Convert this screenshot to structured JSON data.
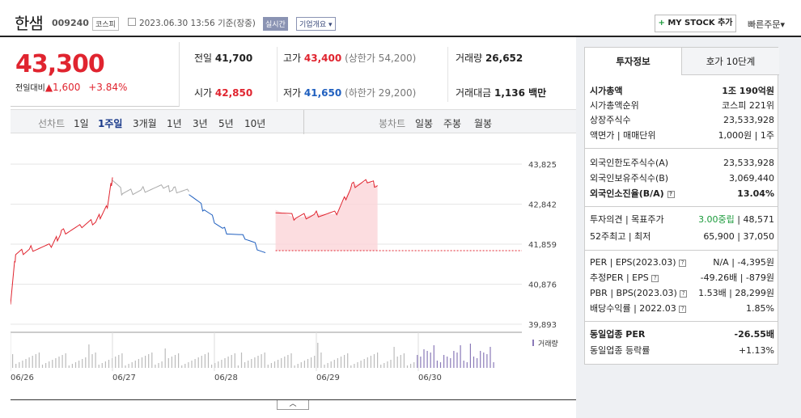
{
  "header": {
    "stock_name": "한샘",
    "stock_code": "009240",
    "market": "코스피",
    "datetime": "2023.06.30 13:56 기준(장중)",
    "realtime_badge": "실시간",
    "company_info": "기업개요",
    "my_stock_button": "MY STOCK 추가",
    "quick_order": "빠른주문"
  },
  "price": {
    "current": "43,300",
    "change_label": "전일대비",
    "change": "1,600",
    "change_pct": "+3.84%"
  },
  "summary": {
    "prev_label": "전일",
    "prev": "41,700",
    "high_label": "고가",
    "high": "43,400",
    "upper_limit": "(상한가 54,200)",
    "volume_label": "거래량",
    "volume": "26,652",
    "open_label": "시가",
    "open": "42,850",
    "low_label": "저가",
    "low": "41,650",
    "lower_limit": "(하한가 29,200)",
    "amount_label": "거래대금",
    "amount": "1,136 백만"
  },
  "controls": {
    "line_label": "선차트",
    "periods": [
      "1일",
      "1주일",
      "3개월",
      "1년",
      "3년",
      "5년",
      "10년"
    ],
    "active_period": "1주일",
    "candle_label": "봉차트",
    "candles": [
      "일봉",
      "주봉",
      "월봉"
    ]
  },
  "chart_data": {
    "type": "line",
    "x": [
      "06/26",
      "06/27",
      "06/28",
      "06/29",
      "06/30"
    ],
    "y_ticks": [
      "43,825",
      "42,842",
      "41,859",
      "40,876",
      "39,893"
    ],
    "ylim": [
      39893,
      43825
    ],
    "volume_label": "거래량",
    "prev_close": 41700,
    "series": [
      {
        "color": "#e0242f",
        "segment": "06/26-06/28",
        "points": [
          [
            0,
            40450
          ],
          [
            0.05,
            41600
          ],
          [
            0.2,
            41750
          ],
          [
            0.4,
            41800
          ],
          [
            0.5,
            42150
          ],
          [
            0.7,
            42300
          ],
          [
            0.85,
            42450
          ],
          [
            0.95,
            42800
          ],
          [
            1.0,
            43500
          ]
        ]
      },
      {
        "color": "#aaaaaa",
        "segment": "06/28",
        "points": [
          [
            1.0,
            43500
          ],
          [
            1.1,
            43100
          ],
          [
            1.3,
            43200
          ],
          [
            1.5,
            43250
          ],
          [
            1.6,
            43200
          ],
          [
            1.75,
            43150
          ]
        ]
      },
      {
        "color": "#1f5fbf",
        "segment": "06/29",
        "points": [
          [
            1.75,
            43150
          ],
          [
            1.9,
            42700
          ],
          [
            2.1,
            42200
          ],
          [
            2.3,
            42000
          ],
          [
            2.5,
            41650
          ]
        ]
      },
      {
        "color": "#e0242f",
        "segment": "06/30",
        "points": [
          [
            2.6,
            42700
          ],
          [
            2.8,
            42500
          ],
          [
            3.0,
            42600
          ],
          [
            3.2,
            42600
          ],
          [
            3.35,
            43300
          ],
          [
            3.5,
            43400
          ],
          [
            3.6,
            43300
          ]
        ]
      }
    ]
  },
  "panel": {
    "tab_active": "투자정보",
    "tab_inactive": "호가 10단계",
    "market_cap_label": "시가총액",
    "market_cap": "1조 190억원",
    "market_cap_rank_label": "시가총액순위",
    "market_cap_rank": "코스피 221위",
    "shares_label": "상장주식수",
    "shares": "23,533,928",
    "par_label": "액면가 | 매매단위",
    "par": "1,000원 | 1주",
    "foreign_limit_label": "외국인한도주식수(A)",
    "foreign_limit": "23,533,928",
    "foreign_hold_label": "외국인보유주식수(B)",
    "foreign_hold": "3,069,440",
    "foreign_ratio_label": "외국인소진율(B/A)",
    "foreign_ratio": "13.04%",
    "opinion_label": "투자의견 | 목표주가",
    "opinion": "3.00중립",
    "target": "48,571",
    "range52_label": "52주최고 | 최저",
    "range52": "65,900 | 37,050",
    "per_label": "PER | EPS(2023.03)",
    "per": "N/A | -4,395원",
    "est_per_label": "추정PER | EPS",
    "est_per": "-49.26배 | -879원",
    "pbr_label": "PBR | BPS(2023.03)",
    "pbr": "1.53배 | 28,299원",
    "div_label": "배당수익률 | 2022.03",
    "div": "1.85%",
    "sector_per_label": "동일업종 PER",
    "sector_per": "-26.55배",
    "sector_chg_label": "동일업종 등락률",
    "sector_chg": "+1.13%"
  }
}
